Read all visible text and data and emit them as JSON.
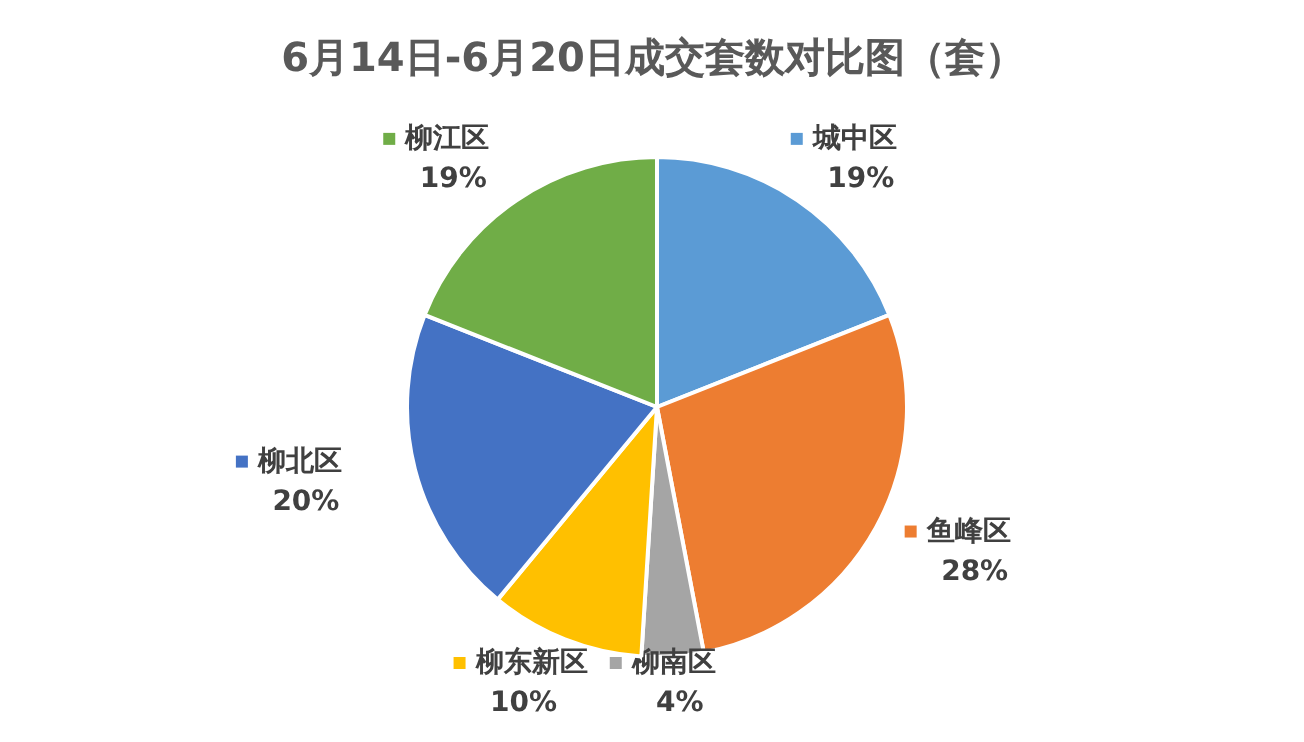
{
  "chart_data": {
    "type": "pie",
    "title": "6月14日-6月20日成交套数对比图（套）",
    "categories": [
      "城中区",
      "鱼峰区",
      "柳南区",
      "柳东新区",
      "柳北区",
      "柳江区"
    ],
    "values": [
      19,
      28,
      4,
      10,
      20,
      19
    ],
    "value_labels": [
      "19%",
      "28%",
      "4%",
      "10%",
      "20%",
      "19%"
    ],
    "colors": [
      "#5b9bd5",
      "#ed7d31",
      "#a5a5a5",
      "#ffc000",
      "#4472c4",
      "#70ad47"
    ],
    "legend": "top left"
  }
}
